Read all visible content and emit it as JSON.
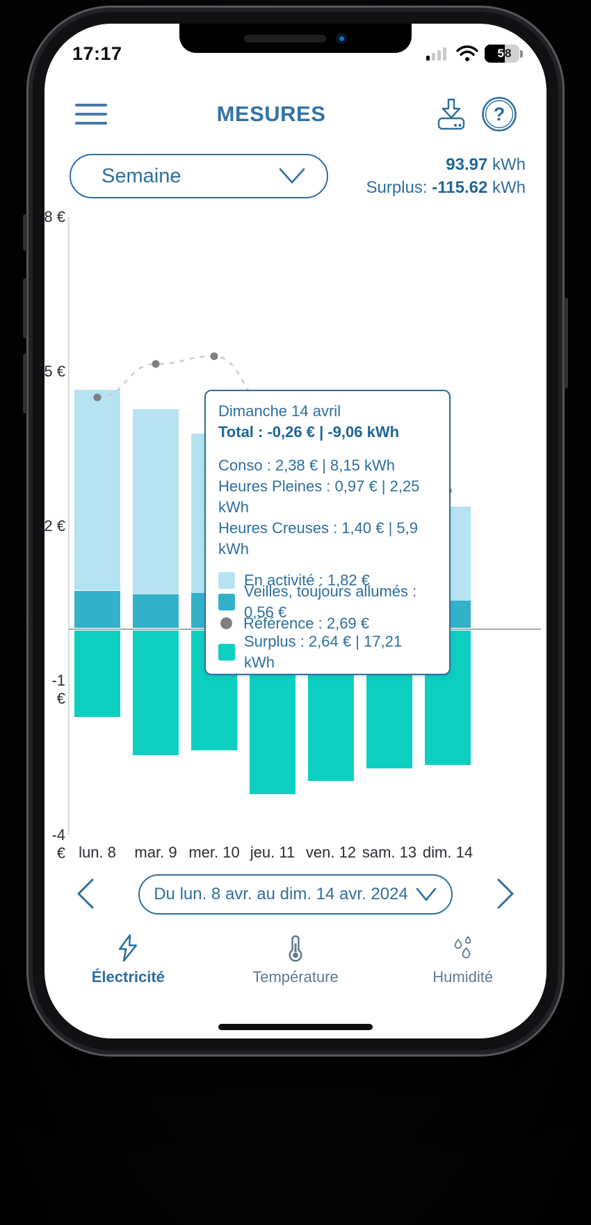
{
  "status_bar": {
    "time": "17:17",
    "battery_digit_filled": "5",
    "battery_digit_empty": "8",
    "battery_percent": "58"
  },
  "header": {
    "title": "MESURES"
  },
  "controls": {
    "period_selector_value": "Semaine",
    "total_value": "93.97",
    "total_unit": " kWh",
    "surplus_label": "Surplus: ",
    "surplus_value": "-115.62",
    "surplus_unit": " kWh"
  },
  "chart_data": {
    "type": "bar",
    "stacked": true,
    "categories": [
      "lun. 8",
      "mar. 9",
      "mer. 10",
      "jeu. 11",
      "ven. 12",
      "sam. 13",
      "dim. 14"
    ],
    "series": [
      {
        "name": "En activité",
        "color": "#b5e3f1",
        "values": [
          3.9,
          3.59,
          3.1,
          3.0,
          2.8,
          2.4,
          1.82
        ]
      },
      {
        "name": "Veilles, toujours allumés",
        "color": "#33b1c8",
        "values": [
          0.75,
          0.68,
          0.7,
          0.65,
          0.6,
          0.6,
          0.56
        ]
      },
      {
        "name": "Surplus",
        "color": "#0ccfc0",
        "values": [
          -1.7,
          -2.45,
          -2.35,
          -3.2,
          -2.95,
          -2.7,
          -2.64
        ]
      }
    ],
    "reference": {
      "name": "Référence",
      "dot_color": "#7f7f7f",
      "line_color": "#cccccc",
      "values": [
        4.5,
        5.15,
        5.3,
        4.3,
        3.7,
        3.1,
        2.69
      ]
    },
    "yticks": [
      {
        "v": 8,
        "label": "8 €"
      },
      {
        "v": 5,
        "label": "5 €"
      },
      {
        "v": 2,
        "label": "2 €"
      },
      {
        "v": -1,
        "label": "-1 €"
      },
      {
        "v": -4,
        "label": "-4 €"
      }
    ],
    "ylim": [
      -4,
      8
    ],
    "grid": false,
    "legend_position": "tooltip"
  },
  "tooltip": {
    "title": "Dimanche 14 avril",
    "total": "Total : -0,26 € | -9,06 kWh",
    "conso": "Conso : 2,38 € | 8,15 kWh",
    "heures_pleines": "Heures Pleines : 0,97 € | 2,25 kWh",
    "heures_creuses": "Heures Creuses : 1,40 € | 5,9 kWh",
    "legend": [
      {
        "swatch": "light-blue-square",
        "label": "En activité : 1,82 €"
      },
      {
        "swatch": "teal-square",
        "label": "Veilles, toujours allumés : 0,56 €"
      },
      {
        "swatch": "gray-dot",
        "label": "Référence : 2,69 €"
      },
      {
        "swatch": "green-square",
        "label": "Surplus : 2,64 € | 17,21 kWh"
      }
    ]
  },
  "date_nav": {
    "label": "Du lun. 8 avr. au dim. 14 avr. 2024"
  },
  "tabs": [
    {
      "label": "Électricité",
      "icon": "lightning-icon",
      "active": true
    },
    {
      "label": "Température",
      "icon": "thermometer-icon",
      "active": false
    },
    {
      "label": "Humidité",
      "icon": "droplets-icon",
      "active": false
    }
  ],
  "colors": {
    "brand_blue": "#2e6f9f",
    "bold_blue": "#1e6697",
    "bar_light_blue": "#b5e3f1",
    "bar_teal": "#33b1c8",
    "bar_green": "#0ccfc0",
    "reference_gray": "#7f7f7f"
  },
  "icons": [
    "hamburger-menu-icon",
    "download-icon",
    "help-icon",
    "chevron-down-icon",
    "chevron-left-icon",
    "chevron-right-icon",
    "signal-icon",
    "wifi-icon",
    "battery-icon",
    "lightning-icon",
    "thermometer-icon",
    "droplets-icon"
  ]
}
